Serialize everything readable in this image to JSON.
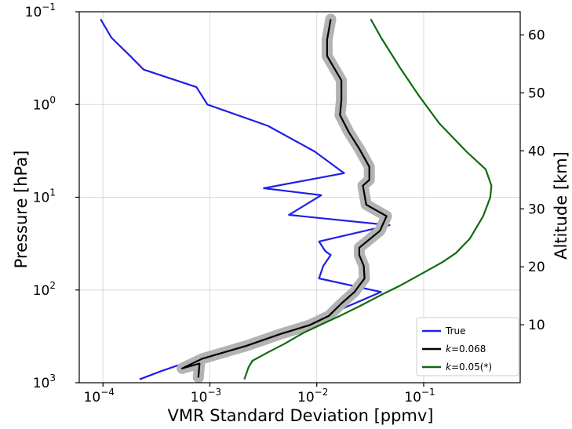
{
  "chart_data": {
    "type": "line",
    "xlabel": "VMR Standard Deviation [ppmv]",
    "ylabel": "Pressure [hPa]",
    "y2label": "Altitude [km]",
    "x_scale": "log",
    "y_scale": "log",
    "y_inverted": true,
    "xlim": [
      6e-05,
      0.8
    ],
    "ylim": [
      1000,
      0.1
    ],
    "y2lim": [
      0,
      64
    ],
    "grid": true,
    "legend_position": "lower right",
    "x_ticks": [
      {
        "value": 0.0001,
        "base": "10",
        "exp": "−4"
      },
      {
        "value": 0.001,
        "base": "10",
        "exp": "−3"
      },
      {
        "value": 0.01,
        "base": "10",
        "exp": "−2"
      },
      {
        "value": 0.1,
        "base": "10",
        "exp": "−1"
      }
    ],
    "y_ticks": [
      {
        "value": 0.1,
        "base": "10",
        "exp": "−1"
      },
      {
        "value": 1,
        "base": "10",
        "exp": "0"
      },
      {
        "value": 10,
        "base": "10",
        "exp": "1"
      },
      {
        "value": 100,
        "base": "10",
        "exp": "2"
      },
      {
        "value": 1000,
        "base": "10",
        "exp": "3"
      }
    ],
    "y2_ticks": [
      "10",
      "20",
      "30",
      "40",
      "50",
      "60"
    ],
    "y2_tick_values": [
      10,
      20,
      30,
      40,
      50,
      60
    ],
    "series": [
      {
        "name": "True",
        "color": "#1f1fe6",
        "points": [
          {
            "x": 9.5e-05,
            "p": 0.12
          },
          {
            "x": 0.00012,
            "p": 0.19
          },
          {
            "x": 0.00018,
            "p": 0.3
          },
          {
            "x": 0.00024,
            "p": 0.42
          },
          {
            "x": 0.00075,
            "p": 0.65
          },
          {
            "x": 0.00095,
            "p": 1.0
          },
          {
            "x": 0.0035,
            "p": 1.7
          },
          {
            "x": 0.0095,
            "p": 3.2
          },
          {
            "x": 0.018,
            "p": 5.5
          },
          {
            "x": 0.0032,
            "p": 8.0
          },
          {
            "x": 0.011,
            "p": 9.5
          },
          {
            "x": 0.0055,
            "p": 15.5
          },
          {
            "x": 0.048,
            "p": 20
          },
          {
            "x": 0.0105,
            "p": 30
          },
          {
            "x": 0.012,
            "p": 38
          },
          {
            "x": 0.0135,
            "p": 42
          },
          {
            "x": 0.0115,
            "p": 55
          },
          {
            "x": 0.0105,
            "p": 75
          },
          {
            "x": 0.04,
            "p": 105
          },
          {
            "x": 0.009,
            "p": 220
          },
          {
            "x": 0.0028,
            "p": 330
          },
          {
            "x": 0.0014,
            "p": 420
          },
          {
            "x": 0.0008,
            "p": 550
          },
          {
            "x": 0.0005,
            "p": 650
          },
          {
            "x": 0.00035,
            "p": 750
          },
          {
            "x": 0.00022,
            "p": 920
          }
        ]
      },
      {
        "name": "k=0.068",
        "label_prefix": "k",
        "label_suffix": "=0.068",
        "color": "#000000",
        "band_color": "#b3b3b3",
        "points": [
          {
            "x": 0.0135,
            "p": 0.12
          },
          {
            "x": 0.0125,
            "p": 0.2
          },
          {
            "x": 0.0125,
            "p": 0.3
          },
          {
            "x": 0.017,
            "p": 0.55
          },
          {
            "x": 0.017,
            "p": 0.9
          },
          {
            "x": 0.0165,
            "p": 1.3
          },
          {
            "x": 0.02,
            "p": 2.0
          },
          {
            "x": 0.025,
            "p": 3.0
          },
          {
            "x": 0.031,
            "p": 4.7
          },
          {
            "x": 0.031,
            "p": 6.5
          },
          {
            "x": 0.027,
            "p": 7.5
          },
          {
            "x": 0.029,
            "p": 12
          },
          {
            "x": 0.045,
            "p": 16
          },
          {
            "x": 0.039,
            "p": 23
          },
          {
            "x": 0.025,
            "p": 35
          },
          {
            "x": 0.025,
            "p": 42
          },
          {
            "x": 0.0275,
            "p": 55
          },
          {
            "x": 0.028,
            "p": 75
          },
          {
            "x": 0.0225,
            "p": 105
          },
          {
            "x": 0.017,
            "p": 140
          },
          {
            "x": 0.013,
            "p": 190
          },
          {
            "x": 0.0085,
            "p": 240
          },
          {
            "x": 0.0045,
            "p": 300
          },
          {
            "x": 0.0022,
            "p": 400
          },
          {
            "x": 0.00085,
            "p": 550
          },
          {
            "x": 0.00055,
            "p": 700
          },
          {
            "x": 0.0008,
            "p": 620
          },
          {
            "x": 0.00078,
            "p": 880
          }
        ]
      },
      {
        "name": "k=0.05(*)",
        "label_prefix": "k",
        "label_suffix": "=0.05(*)",
        "color": "#0f6b0f",
        "points": [
          {
            "x": 0.032,
            "p": 0.12
          },
          {
            "x": 0.04,
            "p": 0.19
          },
          {
            "x": 0.06,
            "p": 0.4
          },
          {
            "x": 0.09,
            "p": 0.8
          },
          {
            "x": 0.14,
            "p": 1.6
          },
          {
            "x": 0.25,
            "p": 3.2
          },
          {
            "x": 0.38,
            "p": 5.0
          },
          {
            "x": 0.43,
            "p": 7.5
          },
          {
            "x": 0.42,
            "p": 10
          },
          {
            "x": 0.36,
            "p": 16
          },
          {
            "x": 0.27,
            "p": 28
          },
          {
            "x": 0.2,
            "p": 40
          },
          {
            "x": 0.15,
            "p": 50
          },
          {
            "x": 0.1,
            "p": 65
          },
          {
            "x": 0.06,
            "p": 90
          },
          {
            "x": 0.042,
            "p": 110
          },
          {
            "x": 0.025,
            "p": 150
          },
          {
            "x": 0.0165,
            "p": 190
          },
          {
            "x": 0.0115,
            "p": 230
          },
          {
            "x": 0.0075,
            "p": 290
          },
          {
            "x": 0.005,
            "p": 380
          },
          {
            "x": 0.0035,
            "p": 470
          },
          {
            "x": 0.0025,
            "p": 580
          },
          {
            "x": 0.0023,
            "p": 680
          },
          {
            "x": 0.0021,
            "p": 920
          }
        ]
      }
    ]
  }
}
